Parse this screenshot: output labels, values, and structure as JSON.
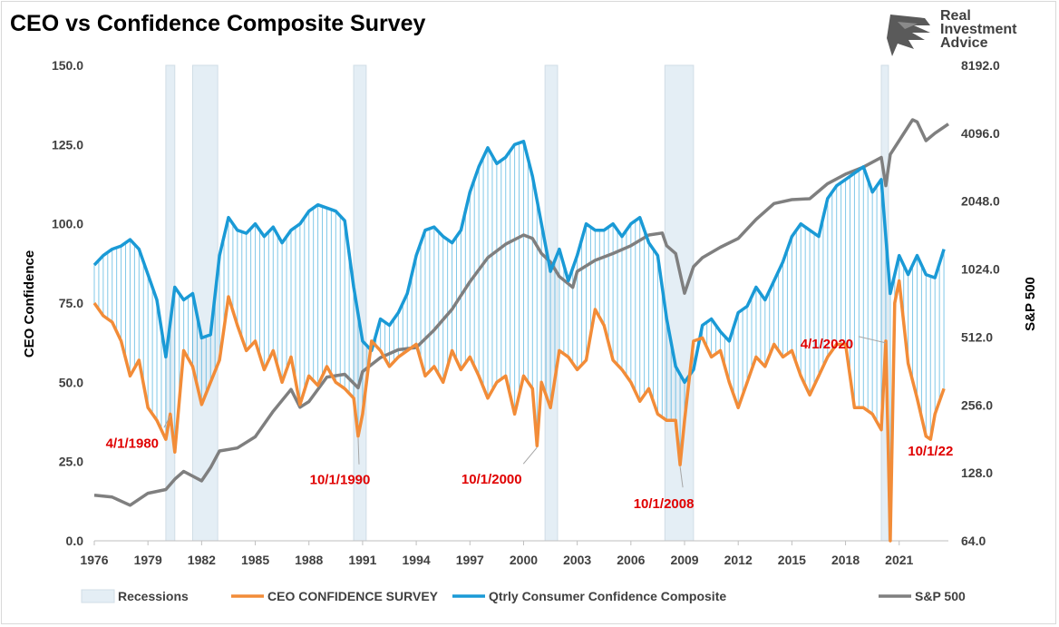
{
  "title": "CEO vs Confidence Composite Survey",
  "logo": {
    "lines": [
      "Real",
      "Investment",
      "Advice"
    ]
  },
  "colors": {
    "ceo": "#F28C38",
    "consumer": "#1A9AD6",
    "sp500": "#7F7F7F",
    "recession": "#E4EEF5"
  },
  "chart_data": {
    "type": "line",
    "ylabel_left": "CEO Confidence",
    "ylabel_right": "S&P 500",
    "ylim_left": [
      0,
      150
    ],
    "yticks_left": [
      "150.0",
      "125.0",
      "100.0",
      "75.0",
      "50.0",
      "25.0",
      "0.0"
    ],
    "yticks_right": [
      "8192.0",
      "4096.0",
      "2048.0",
      "1024.0",
      "512.0",
      "256.0",
      "128.0",
      "64.0"
    ],
    "ylim_right": [
      64,
      8192
    ],
    "right_scale": "log2",
    "xlim": [
      1976,
      2023.75
    ],
    "xticks": [
      "1976",
      "1979",
      "1982",
      "1985",
      "1988",
      "1991",
      "1994",
      "1997",
      "2000",
      "2003",
      "2006",
      "2009",
      "2012",
      "2015",
      "2018",
      "2021"
    ],
    "recessions": [
      [
        1980.0,
        1980.5
      ],
      [
        1981.5,
        1982.9
      ],
      [
        1990.5,
        1991.2
      ],
      [
        2001.2,
        2001.9
      ],
      [
        2007.9,
        2009.5
      ],
      [
        2020.0,
        2020.4
      ]
    ],
    "series": [
      {
        "name": "CEO CONFIDENCE SURVEY",
        "x": [
          1976.0,
          1976.5,
          1977.0,
          1977.5,
          1978.0,
          1978.5,
          1979.0,
          1979.5,
          1980.0,
          1980.25,
          1980.5,
          1981.0,
          1981.5,
          1982.0,
          1982.5,
          1983.0,
          1983.5,
          1984.0,
          1984.5,
          1985.0,
          1985.5,
          1986.0,
          1986.5,
          1987.0,
          1987.5,
          1988.0,
          1988.5,
          1989.0,
          1989.5,
          1990.0,
          1990.5,
          1990.75,
          1991.0,
          1991.5,
          1992.0,
          1992.5,
          1993.0,
          1993.5,
          1994.0,
          1994.5,
          1995.0,
          1995.5,
          1996.0,
          1996.5,
          1997.0,
          1997.5,
          1998.0,
          1998.5,
          1999.0,
          1999.5,
          2000.0,
          2000.5,
          2000.75,
          2001.0,
          2001.5,
          2002.0,
          2002.5,
          2003.0,
          2003.5,
          2004.0,
          2004.5,
          2005.0,
          2005.5,
          2006.0,
          2006.5,
          2007.0,
          2007.5,
          2008.0,
          2008.5,
          2008.75,
          2009.0,
          2009.5,
          2010.0,
          2010.5,
          2011.0,
          2011.5,
          2012.0,
          2012.5,
          2013.0,
          2013.5,
          2014.0,
          2014.5,
          2015.0,
          2015.5,
          2016.0,
          2016.5,
          2017.0,
          2017.5,
          2018.0,
          2018.5,
          2019.0,
          2019.5,
          2020.0,
          2020.25,
          2020.5,
          2020.75,
          2021.0,
          2021.5,
          2022.0,
          2022.5,
          2022.75,
          2023.0,
          2023.5
        ],
        "values": [
          75,
          71,
          69,
          63,
          52,
          57,
          42,
          38,
          32,
          40,
          28,
          60,
          55,
          43,
          50,
          57,
          77,
          68,
          60,
          63,
          54,
          60,
          50,
          58,
          43,
          52,
          49,
          55,
          50,
          48,
          45,
          33,
          40,
          63,
          60,
          55,
          58,
          60,
          62,
          52,
          55,
          50,
          60,
          54,
          58,
          52,
          45,
          50,
          52,
          40,
          52,
          48,
          30,
          50,
          42,
          60,
          58,
          54,
          57,
          73,
          68,
          57,
          54,
          50,
          44,
          48,
          40,
          38,
          38,
          24,
          38,
          63,
          64,
          58,
          60,
          50,
          42,
          50,
          58,
          55,
          62,
          58,
          60,
          52,
          46,
          52,
          58,
          62,
          62,
          42,
          42,
          40,
          35,
          63,
          0,
          75,
          82,
          56,
          45,
          33,
          32,
          40,
          48
        ]
      },
      {
        "name": "Qtrly Consumer Confidence Composite",
        "x": [
          1976.0,
          1976.5,
          1977.0,
          1977.5,
          1978.0,
          1978.5,
          1979.0,
          1979.5,
          1980.0,
          1980.5,
          1981.0,
          1981.5,
          1982.0,
          1982.5,
          1983.0,
          1983.5,
          1984.0,
          1984.5,
          1985.0,
          1985.5,
          1986.0,
          1986.5,
          1987.0,
          1987.5,
          1988.0,
          1988.5,
          1989.0,
          1989.5,
          1990.0,
          1990.5,
          1991.0,
          1991.5,
          1992.0,
          1992.5,
          1993.0,
          1993.5,
          1994.0,
          1994.5,
          1995.0,
          1995.5,
          1996.0,
          1996.5,
          1997.0,
          1997.5,
          1998.0,
          1998.5,
          1999.0,
          1999.5,
          2000.0,
          2000.5,
          2001.0,
          2001.5,
          2002.0,
          2002.5,
          2003.0,
          2003.5,
          2004.0,
          2004.5,
          2005.0,
          2005.5,
          2006.0,
          2006.5,
          2007.0,
          2007.5,
          2008.0,
          2008.5,
          2009.0,
          2009.5,
          2010.0,
          2010.5,
          2011.0,
          2011.5,
          2012.0,
          2012.5,
          2013.0,
          2013.5,
          2014.0,
          2014.5,
          2015.0,
          2015.5,
          2016.0,
          2016.5,
          2017.0,
          2017.5,
          2018.0,
          2018.5,
          2019.0,
          2019.5,
          2020.0,
          2020.5,
          2021.0,
          2021.5,
          2022.0,
          2022.5,
          2023.0,
          2023.5
        ],
        "values": [
          87,
          90,
          92,
          93,
          95,
          92,
          84,
          76,
          58,
          80,
          76,
          78,
          64,
          65,
          90,
          102,
          98,
          97,
          100,
          96,
          99,
          94,
          98,
          100,
          104,
          106,
          105,
          104,
          101,
          80,
          63,
          60,
          70,
          68,
          72,
          78,
          90,
          98,
          99,
          96,
          94,
          98,
          110,
          118,
          124,
          119,
          121,
          125,
          126,
          115,
          100,
          85,
          92,
          82,
          90,
          100,
          98,
          98,
          100,
          96,
          100,
          102,
          94,
          90,
          70,
          55,
          50,
          54,
          68,
          70,
          66,
          63,
          72,
          74,
          80,
          76,
          82,
          88,
          96,
          100,
          98,
          96,
          108,
          112,
          114,
          116,
          118,
          110,
          114,
          78,
          90,
          84,
          90,
          84,
          83,
          92
        ]
      },
      {
        "name": "S&P 500",
        "x": [
          1976.0,
          1977.0,
          1978.0,
          1979.0,
          1980.0,
          1980.5,
          1981.0,
          1982.0,
          1982.5,
          1983.0,
          1984.0,
          1985.0,
          1986.0,
          1987.0,
          1987.5,
          1988.0,
          1989.0,
          1990.0,
          1990.75,
          1991.0,
          1992.0,
          1993.0,
          1994.0,
          1995.0,
          1996.0,
          1997.0,
          1998.0,
          1999.0,
          2000.0,
          2000.5,
          2001.0,
          2001.5,
          2002.0,
          2002.75,
          2003.0,
          2004.0,
          2005.0,
          2006.0,
          2007.0,
          2007.75,
          2008.0,
          2008.5,
          2009.0,
          2009.5,
          2010.0,
          2011.0,
          2012.0,
          2013.0,
          2014.0,
          2015.0,
          2016.0,
          2017.0,
          2018.0,
          2019.0,
          2020.0,
          2020.25,
          2020.5,
          2021.0,
          2021.75,
          2022.0,
          2022.5,
          2023.0,
          2023.75
        ],
        "values": [
          102,
          100,
          92,
          104,
          108,
          120,
          130,
          118,
          135,
          160,
          165,
          185,
          240,
          300,
          250,
          265,
          340,
          350,
          305,
          360,
          415,
          450,
          460,
          550,
          680,
          900,
          1150,
          1320,
          1450,
          1400,
          1200,
          1100,
          950,
          850,
          1000,
          1120,
          1200,
          1300,
          1450,
          1480,
          1300,
          1200,
          800,
          1050,
          1150,
          1280,
          1400,
          1700,
          2000,
          2080,
          2100,
          2450,
          2700,
          2900,
          3200,
          2400,
          3300,
          3800,
          4700,
          4600,
          3800,
          4100,
          4500
        ]
      }
    ],
    "annotations": [
      {
        "text": "4/1/1980",
        "x": 1980.25
      },
      {
        "text": "10/1/1990",
        "x": 1990.75
      },
      {
        "text": "10/1/2000",
        "x": 2000.75
      },
      {
        "text": "10/1/2008",
        "x": 2008.75
      },
      {
        "text": "4/1/2020",
        "x": 2020.25
      },
      {
        "text": "10/1/22",
        "x": 2022.75
      }
    ],
    "legend": {
      "position": "bottom",
      "items": [
        {
          "label": "Recessions",
          "kind": "box",
          "color": "#E4EEF5"
        },
        {
          "label": "CEO CONFIDENCE SURVEY",
          "kind": "line",
          "color": "#F28C38"
        },
        {
          "label": "Qtrly Consumer Confidence Composite",
          "kind": "line",
          "color": "#1A9AD6"
        },
        {
          "label": "S&P 500",
          "kind": "line",
          "color": "#7F7F7F"
        }
      ]
    }
  }
}
